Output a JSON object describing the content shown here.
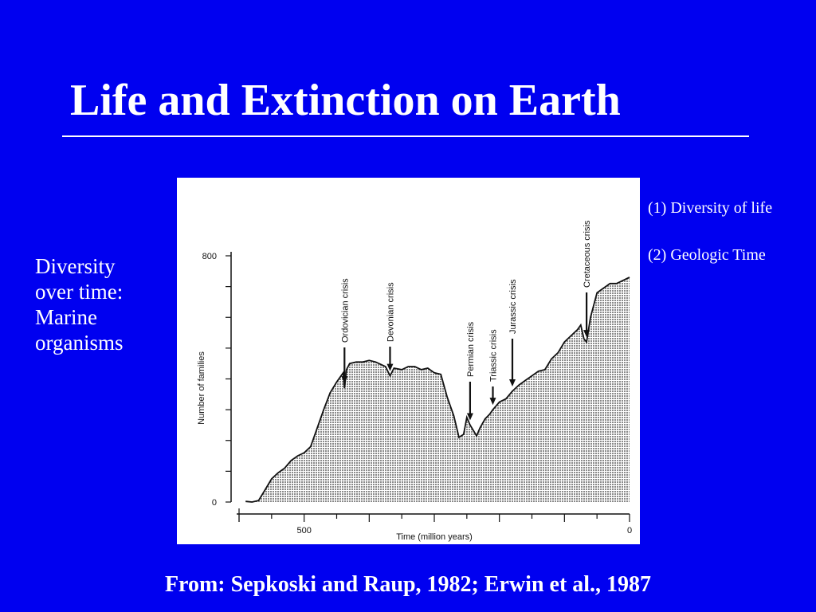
{
  "slide": {
    "title": "Life and Extinction on Earth",
    "side_note": [
      "Diversity",
      "over time:",
      "Marine",
      "organisms"
    ],
    "notes": [
      "(1) Diversity of life",
      "(2) Geologic Time"
    ],
    "source": "From: Sepkoski and Raup, 1982; Erwin et al., 1987"
  },
  "colors": {
    "background": "#0000f0",
    "text": "#ffffff",
    "fill": "#b4b4b4",
    "ink": "#111111"
  },
  "chart_data": {
    "type": "area",
    "xlabel": "Time (million years)",
    "ylabel": "Number of families",
    "xlim": [
      600,
      0
    ],
    "ylim": [
      0,
      800
    ],
    "x_reversed": true,
    "x_ticks": [
      500,
      0
    ],
    "y_ticks": [
      800,
      0
    ],
    "x": [
      590,
      580,
      570,
      560,
      550,
      540,
      530,
      520,
      510,
      500,
      490,
      480,
      470,
      460,
      450,
      440,
      438,
      435,
      430,
      420,
      410,
      400,
      390,
      375,
      368,
      362,
      350,
      340,
      330,
      320,
      310,
      300,
      290,
      280,
      270,
      262,
      255,
      250,
      245,
      235,
      230,
      222,
      215,
      210,
      200,
      190,
      180,
      170,
      160,
      150,
      140,
      130,
      120,
      110,
      100,
      90,
      80,
      75,
      70,
      66,
      60,
      50,
      40,
      30,
      20,
      10,
      0
    ],
    "values": [
      2,
      0,
      5,
      40,
      75,
      95,
      110,
      135,
      150,
      160,
      180,
      240,
      300,
      355,
      390,
      420,
      370,
      430,
      450,
      455,
      455,
      460,
      455,
      440,
      410,
      435,
      430,
      440,
      440,
      430,
      435,
      420,
      415,
      340,
      280,
      210,
      220,
      275,
      250,
      215,
      240,
      270,
      285,
      300,
      325,
      335,
      360,
      380,
      395,
      410,
      425,
      430,
      465,
      485,
      520,
      540,
      560,
      575,
      530,
      520,
      600,
      680,
      695,
      710,
      710,
      720,
      730
    ],
    "annotations": [
      {
        "label": "Ordovician crisis",
        "x": 438
      },
      {
        "label": "Devonian crisis",
        "x": 368
      },
      {
        "label": "Permian crisis",
        "x": 245
      },
      {
        "label": "Triassic crisis",
        "x": 210
      },
      {
        "label": "Jurassic crisis",
        "x": 180
      },
      {
        "label": "Cretaceous crisis",
        "x": 66
      }
    ]
  }
}
